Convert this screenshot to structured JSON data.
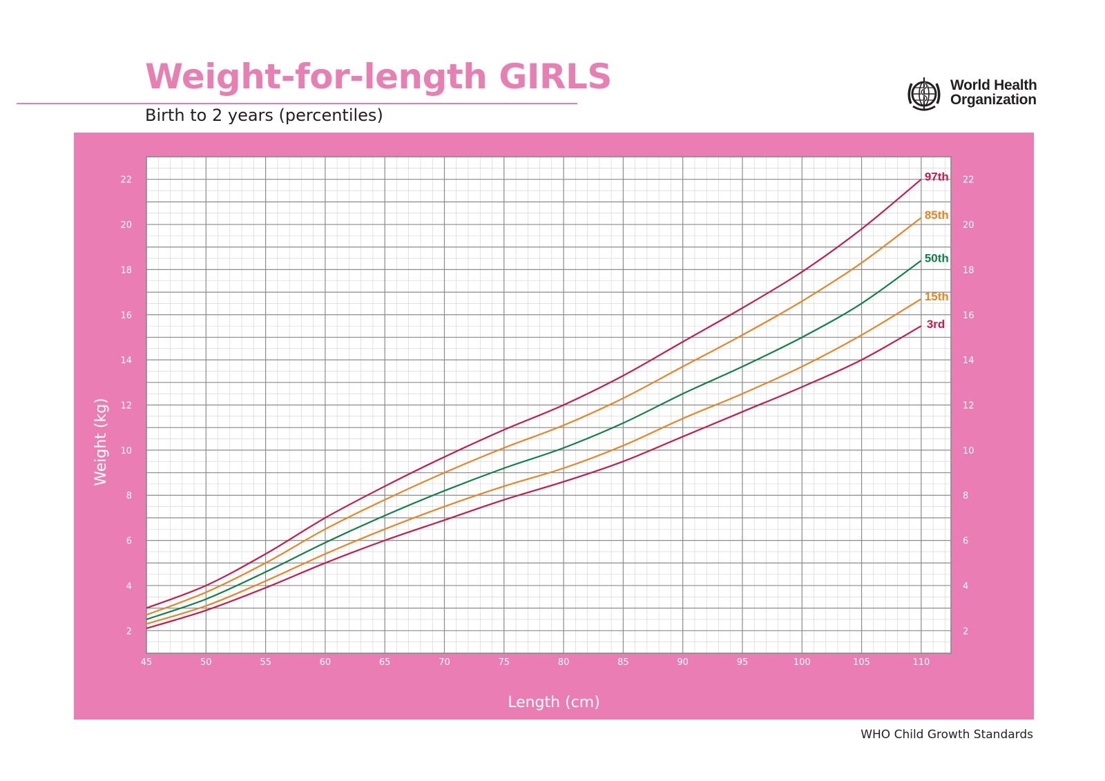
{
  "header": {
    "title": "Weight-for-length GIRLS",
    "subtitle": "Birth to 2 years (percentiles)"
  },
  "logo": {
    "line1": "World Health",
    "line2": "Organization",
    "icon": "who-emblem-icon"
  },
  "footer": {
    "text": "WHO Child Growth Standards"
  },
  "colors": {
    "brand_pink": "#e77fb3",
    "panel_pink": "#e97db4",
    "p97_3": "#c8194b",
    "p85_15": "#e98324",
    "p50": "#0f8147",
    "grid_major": "#8a8a8a",
    "grid_minor": "#cfcfcf"
  },
  "chart_data": {
    "type": "line",
    "title": "Weight-for-length GIRLS",
    "subtitle": "Birth to 2 years (percentiles)",
    "xlabel": "Length (cm)",
    "ylabel": "Weight (kg)",
    "xlim": [
      45,
      112.5
    ],
    "ylim": [
      1,
      23
    ],
    "x_ticks": [
      45,
      50,
      55,
      60,
      65,
      70,
      75,
      80,
      85,
      90,
      95,
      100,
      105,
      110
    ],
    "y_ticks": [
      2,
      4,
      6,
      8,
      10,
      12,
      14,
      16,
      18,
      20,
      22
    ],
    "y_ticks_right": true,
    "grid": true,
    "grid_minor_x": 1,
    "grid_minor_y": 0.5,
    "x": [
      45,
      50,
      55,
      60,
      65,
      70,
      75,
      80,
      85,
      90,
      95,
      100,
      105,
      110
    ],
    "series": [
      {
        "name": "97th",
        "color": "#c8194b",
        "values": [
          3.0,
          4.0,
          5.4,
          7.0,
          8.4,
          9.7,
          10.9,
          12.0,
          13.3,
          14.8,
          16.3,
          17.9,
          19.8,
          22.0
        ]
      },
      {
        "name": "85th",
        "color": "#e98324",
        "values": [
          2.7,
          3.7,
          5.0,
          6.5,
          7.8,
          9.0,
          10.1,
          11.1,
          12.3,
          13.7,
          15.1,
          16.6,
          18.3,
          20.3
        ]
      },
      {
        "name": "50th",
        "color": "#0f8147",
        "values": [
          2.5,
          3.4,
          4.6,
          5.9,
          7.1,
          8.2,
          9.2,
          10.1,
          11.2,
          12.5,
          13.7,
          15.0,
          16.5,
          18.4
        ]
      },
      {
        "name": "15th",
        "color": "#e98324",
        "values": [
          2.3,
          3.1,
          4.2,
          5.4,
          6.5,
          7.5,
          8.4,
          9.2,
          10.2,
          11.4,
          12.5,
          13.7,
          15.1,
          16.7
        ]
      },
      {
        "name": "3rd",
        "color": "#c8194b",
        "values": [
          2.1,
          2.9,
          3.9,
          5.0,
          6.0,
          6.9,
          7.8,
          8.6,
          9.5,
          10.6,
          11.7,
          12.8,
          14.0,
          15.5
        ]
      }
    ]
  }
}
